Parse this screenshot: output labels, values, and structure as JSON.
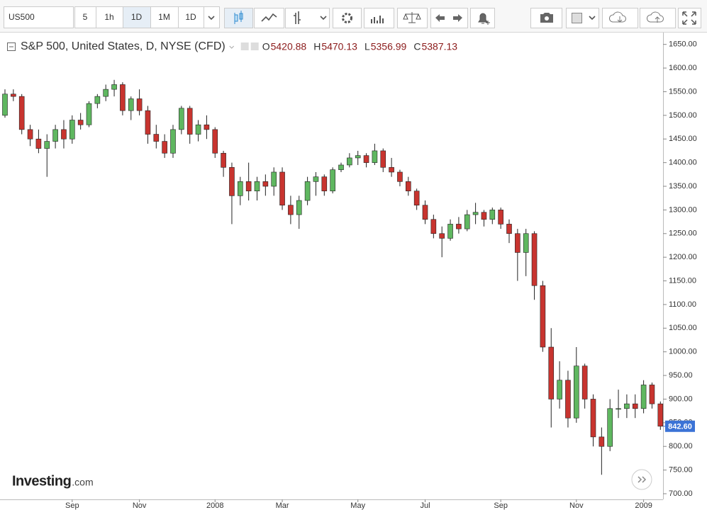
{
  "toolbar": {
    "symbol": "US500",
    "intervals": [
      "5",
      "1h",
      "1D",
      "1M",
      "1D"
    ]
  },
  "legend": {
    "title": "S&P 500, United States, D, NYSE (CFD)",
    "ohlc": [
      {
        "key": "O",
        "value": 5420.88
      },
      {
        "key": "H",
        "value": 5470.13
      },
      {
        "key": "L",
        "value": 5356.99
      },
      {
        "key": "C",
        "value": 5387.13
      }
    ]
  },
  "chart_data": {
    "type": "candlestick",
    "categories": [
      null,
      null,
      null,
      null,
      null,
      null,
      null,
      null,
      "Sep",
      null,
      null,
      null,
      null,
      null,
      null,
      null,
      "Nov",
      null,
      null,
      null,
      null,
      null,
      null,
      null,
      null,
      "2008",
      null,
      null,
      null,
      null,
      null,
      null,
      null,
      "Mar",
      null,
      null,
      null,
      null,
      null,
      null,
      null,
      null,
      "May",
      null,
      null,
      null,
      null,
      null,
      null,
      null,
      "Jul",
      null,
      null,
      null,
      null,
      null,
      null,
      null,
      null,
      "Sep",
      null,
      null,
      null,
      null,
      null,
      null,
      null,
      null,
      "Nov",
      null,
      null,
      null,
      null,
      null,
      null,
      null,
      "2009",
      null,
      null
    ],
    "open": [
      1500,
      1545,
      1540,
      1470,
      1450,
      1430,
      1445,
      1470,
      1450,
      1490,
      1480,
      1525,
      1540,
      1555,
      1565,
      1510,
      1535,
      1510,
      1460,
      1445,
      1420,
      1470,
      1515,
      1460,
      1480,
      1470,
      1420,
      1390,
      1330,
      1360,
      1340,
      1360,
      1350,
      1380,
      1310,
      1290,
      1320,
      1360,
      1370,
      1340,
      1385,
      1395,
      1410,
      1415,
      1400,
      1425,
      1390,
      1380,
      1360,
      1340,
      1310,
      1280,
      1250,
      1240,
      1270,
      1260,
      1290,
      1295,
      1280,
      1300,
      1270,
      1250,
      1210,
      1250,
      1140,
      1010,
      900,
      940,
      860,
      970,
      900,
      820,
      800,
      880,
      880,
      890,
      880,
      930,
      890
    ],
    "high": [
      1555,
      1555,
      1545,
      1480,
      1470,
      1460,
      1480,
      1490,
      1500,
      1505,
      1530,
      1545,
      1565,
      1575,
      1570,
      1540,
      1555,
      1520,
      1480,
      1460,
      1480,
      1520,
      1520,
      1490,
      1500,
      1475,
      1425,
      1400,
      1370,
      1400,
      1370,
      1375,
      1390,
      1390,
      1330,
      1330,
      1370,
      1380,
      1375,
      1390,
      1400,
      1420,
      1425,
      1420,
      1440,
      1430,
      1410,
      1385,
      1370,
      1345,
      1320,
      1290,
      1265,
      1280,
      1285,
      1300,
      1315,
      1300,
      1305,
      1305,
      1280,
      1260,
      1260,
      1255,
      1150,
      1050,
      980,
      960,
      1010,
      975,
      910,
      840,
      900,
      920,
      910,
      910,
      940,
      935,
      895
    ],
    "low": [
      1495,
      1530,
      1460,
      1435,
      1420,
      1370,
      1430,
      1430,
      1440,
      1470,
      1475,
      1515,
      1530,
      1540,
      1500,
      1490,
      1500,
      1440,
      1430,
      1410,
      1410,
      1460,
      1440,
      1445,
      1450,
      1410,
      1370,
      1270,
      1310,
      1320,
      1320,
      1330,
      1330,
      1300,
      1270,
      1260,
      1310,
      1330,
      1330,
      1335,
      1380,
      1390,
      1395,
      1390,
      1395,
      1380,
      1370,
      1350,
      1330,
      1300,
      1270,
      1240,
      1200,
      1235,
      1250,
      1255,
      1270,
      1265,
      1270,
      1260,
      1230,
      1150,
      1160,
      1110,
      1000,
      840,
      880,
      840,
      850,
      880,
      800,
      740,
      790,
      860,
      860,
      860,
      870,
      880,
      835
    ],
    "close": [
      1545,
      1540,
      1470,
      1450,
      1430,
      1445,
      1470,
      1450,
      1490,
      1480,
      1525,
      1540,
      1555,
      1565,
      1510,
      1535,
      1510,
      1460,
      1445,
      1420,
      1470,
      1515,
      1460,
      1480,
      1470,
      1420,
      1390,
      1330,
      1360,
      1340,
      1360,
      1350,
      1380,
      1310,
      1290,
      1320,
      1360,
      1370,
      1340,
      1385,
      1395,
      1410,
      1415,
      1400,
      1425,
      1390,
      1380,
      1360,
      1340,
      1310,
      1280,
      1250,
      1240,
      1270,
      1260,
      1290,
      1295,
      1280,
      1300,
      1270,
      1250,
      1210,
      1250,
      1140,
      1010,
      900,
      940,
      860,
      970,
      900,
      820,
      800,
      880,
      880,
      890,
      880,
      930,
      890,
      842.6
    ],
    "up_color": "#5fb760",
    "down_color": "#c8342f",
    "ylim": [
      688,
      1675
    ],
    "yticks": [
      {
        "value": 700,
        "label": "700.00"
      },
      {
        "value": 750,
        "label": "750.00"
      },
      {
        "value": 800,
        "label": "800.00"
      },
      {
        "value": 850,
        "label": "850.00"
      },
      {
        "value": 900,
        "label": "900.00"
      },
      {
        "value": 950,
        "label": "950.00"
      },
      {
        "value": 1000,
        "label": "1000.00"
      },
      {
        "value": 1050,
        "label": "1050.00"
      },
      {
        "value": 1100,
        "label": "1100.00"
      },
      {
        "value": 1150,
        "label": "1150.00"
      },
      {
        "value": 1200,
        "label": "1200.00"
      },
      {
        "value": 1250,
        "label": "1250.00"
      },
      {
        "value": 1300,
        "label": "1300.00"
      },
      {
        "value": 1350,
        "label": "1350.00"
      },
      {
        "value": 1400,
        "label": "1400.00"
      },
      {
        "value": 1450,
        "label": "1450.00"
      },
      {
        "value": 1500,
        "label": "1500.00"
      },
      {
        "value": 1550,
        "label": "1550.00"
      },
      {
        "value": 1600,
        "label": "1600.00"
      },
      {
        "value": 1650,
        "label": "1650.00"
      }
    ],
    "last_value": {
      "value": 842.6,
      "label": "842.60"
    }
  },
  "branding": {
    "logo": "Investing",
    "suffix": ".com"
  }
}
